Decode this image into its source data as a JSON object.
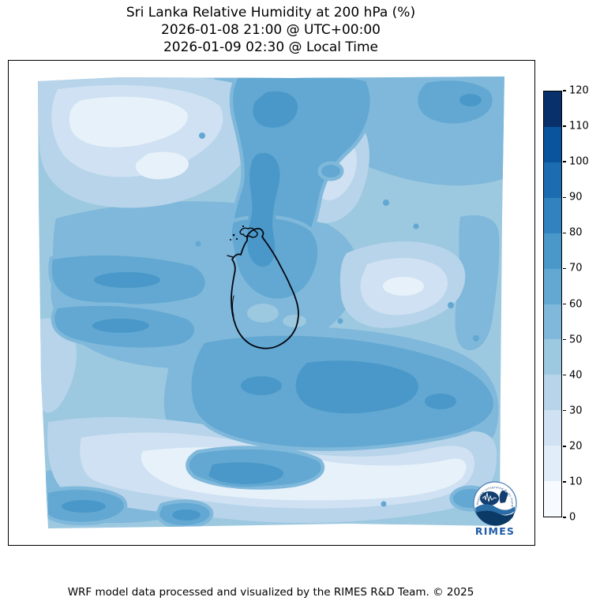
{
  "title": {
    "line1": "Sri Lanka Relative Humidity at 200 hPa (%)",
    "line2": "2026-01-08 21:00 @ UTC+00:00",
    "line3": "2026-01-09 02:30 @ Local Time"
  },
  "footer": "WRF model data processed and visualized by the RIMES R&D Team. © 2025",
  "logo": {
    "text": "RIMES",
    "ring_text": "Regional Integrated Multi-Hazard Early Warning System",
    "wordmark_color": "#1e5ca6"
  },
  "colorbar": {
    "min": 0,
    "max": 120,
    "step": 10,
    "tick_values": [
      0,
      10,
      20,
      30,
      40,
      50,
      60,
      70,
      80,
      90,
      100,
      110,
      120
    ],
    "colors": [
      "#f7fbff",
      "#e1edf8",
      "#cfe1f2",
      "#b7d4ea",
      "#9cc8e0",
      "#7fb8da",
      "#62a8d2",
      "#4a98c9",
      "#3182be",
      "#1c6cb1",
      "#0a549e",
      "#08306b"
    ]
  },
  "chart_data": {
    "type": "heatmap",
    "subtype": "filled-contour-weather-map",
    "title": "Sri Lanka Relative Humidity at 200 hPa (%)",
    "valid_time_utc": "2026-01-08 21:00 @ UTC+00:00",
    "valid_time_local": "2026-01-09 02:30 @ Local Time",
    "variable": "Relative Humidity",
    "pressure_level_hPa": 200,
    "units": "%",
    "region": "Sri Lanka and surrounding ocean (WRF model domain)",
    "colormap": "Blues",
    "contour_levels": [
      0,
      10,
      20,
      30,
      40,
      50,
      60,
      70,
      80,
      90,
      100,
      110,
      120
    ],
    "colorbar_range": [
      0,
      120
    ],
    "legend_position": "right",
    "grid": false,
    "overlay": "Sri Lanka coastline outline in black",
    "field_summary": {
      "observed_min_percent": 15,
      "observed_max_percent": 80,
      "high_humidity_areas_60_80": "north-center band, west-center streaks, large south-central and south-east region around and below Sri Lanka",
      "low_humidity_areas_15_40": "north-west corner of domain, tongue east of the north-center band, east-central patch, broad southern band near bottom",
      "mid_humidity_40_60": "remaining background of the domain"
    }
  }
}
